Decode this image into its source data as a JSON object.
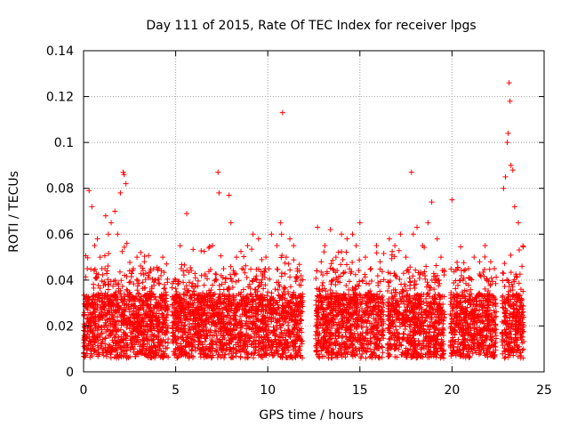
{
  "chart_data": {
    "type": "scatter",
    "title": "Day 111 of 2015, Rate Of TEC Index for receiver lpgs",
    "xlabel": "GPS time / hours",
    "ylabel": "ROTI / TECUs",
    "xlim": [
      0,
      25
    ],
    "ylim": [
      0,
      0.14
    ],
    "xticks": [
      0,
      5,
      10,
      15,
      20,
      25
    ],
    "yticks": [
      0,
      0.02,
      0.04,
      0.06,
      0.08,
      0.1,
      0.12,
      0.14
    ],
    "xtick_labels": [
      "0",
      "5",
      "10",
      "15",
      "20",
      "25"
    ],
    "ytick_labels": [
      "0",
      "0.02",
      "0.04",
      "0.06",
      "0.08",
      "0.1",
      "0.12",
      "0.14"
    ],
    "grid": true,
    "marker": "+",
    "color": "#ff0000",
    "coverage_segments": [
      {
        "start": 0.0,
        "end": 4.6
      },
      {
        "start": 4.8,
        "end": 11.9
      },
      {
        "start": 12.6,
        "end": 16.3
      },
      {
        "start": 16.5,
        "end": 19.6
      },
      {
        "start": 19.9,
        "end": 22.4
      },
      {
        "start": 22.7,
        "end": 23.9
      }
    ],
    "series": [
      {
        "name": "ROTI",
        "x": [
          0.05,
          0.2,
          0.3,
          0.45,
          0.6,
          0.75,
          0.9,
          1.0,
          1.2,
          1.35,
          1.5,
          1.7,
          1.85,
          2.0,
          2.15,
          2.2,
          2.3,
          2.35,
          2.5,
          2.7,
          2.9,
          3.1,
          3.3,
          3.5,
          3.7,
          3.9,
          4.1,
          4.3,
          4.5,
          5.0,
          5.3,
          5.6,
          6.0,
          6.4,
          6.8,
          7.0,
          7.3,
          7.35,
          7.6,
          7.9,
          8.0,
          8.3,
          8.6,
          8.9,
          9.2,
          9.5,
          9.9,
          10.2,
          10.5,
          10.7,
          10.75,
          10.8,
          11.0,
          11.2,
          11.4,
          11.6,
          11.8,
          12.7,
          12.9,
          13.1,
          13.4,
          13.7,
          14.0,
          14.3,
          14.6,
          14.8,
          15.0,
          15.3,
          15.6,
          15.9,
          16.1,
          16.6,
          16.9,
          17.2,
          17.5,
          17.8,
          17.9,
          18.1,
          18.4,
          18.7,
          18.9,
          19.2,
          19.4,
          20.0,
          20.3,
          20.6,
          20.9,
          21.2,
          21.5,
          21.8,
          22.1,
          22.3,
          22.8,
          22.9,
          23.0,
          23.05,
          23.1,
          23.15,
          23.2,
          23.3,
          23.4,
          23.6,
          23.8
        ],
        "y": [
          0.025,
          0.045,
          0.079,
          0.072,
          0.055,
          0.058,
          0.05,
          0.045,
          0.068,
          0.06,
          0.065,
          0.07,
          0.06,
          0.078,
          0.087,
          0.086,
          0.082,
          0.056,
          0.044,
          0.045,
          0.05,
          0.052,
          0.048,
          0.042,
          0.037,
          0.04,
          0.045,
          0.05,
          0.047,
          0.04,
          0.045,
          0.069,
          0.035,
          0.042,
          0.054,
          0.055,
          0.087,
          0.078,
          0.045,
          0.077,
          0.065,
          0.05,
          0.045,
          0.055,
          0.06,
          0.058,
          0.05,
          0.06,
          0.055,
          0.065,
          0.06,
          0.113,
          0.05,
          0.058,
          0.055,
          0.045,
          0.04,
          0.063,
          0.048,
          0.055,
          0.062,
          0.05,
          0.06,
          0.058,
          0.06,
          0.055,
          0.065,
          0.05,
          0.045,
          0.055,
          0.048,
          0.058,
          0.055,
          0.06,
          0.05,
          0.087,
          0.06,
          0.063,
          0.055,
          0.065,
          0.074,
          0.058,
          0.05,
          0.075,
          0.045,
          0.04,
          0.045,
          0.05,
          0.048,
          0.055,
          0.048,
          0.045,
          0.08,
          0.085,
          0.1,
          0.104,
          0.126,
          0.118,
          0.09,
          0.088,
          0.072,
          0.065,
          0.046
        ]
      }
    ]
  }
}
